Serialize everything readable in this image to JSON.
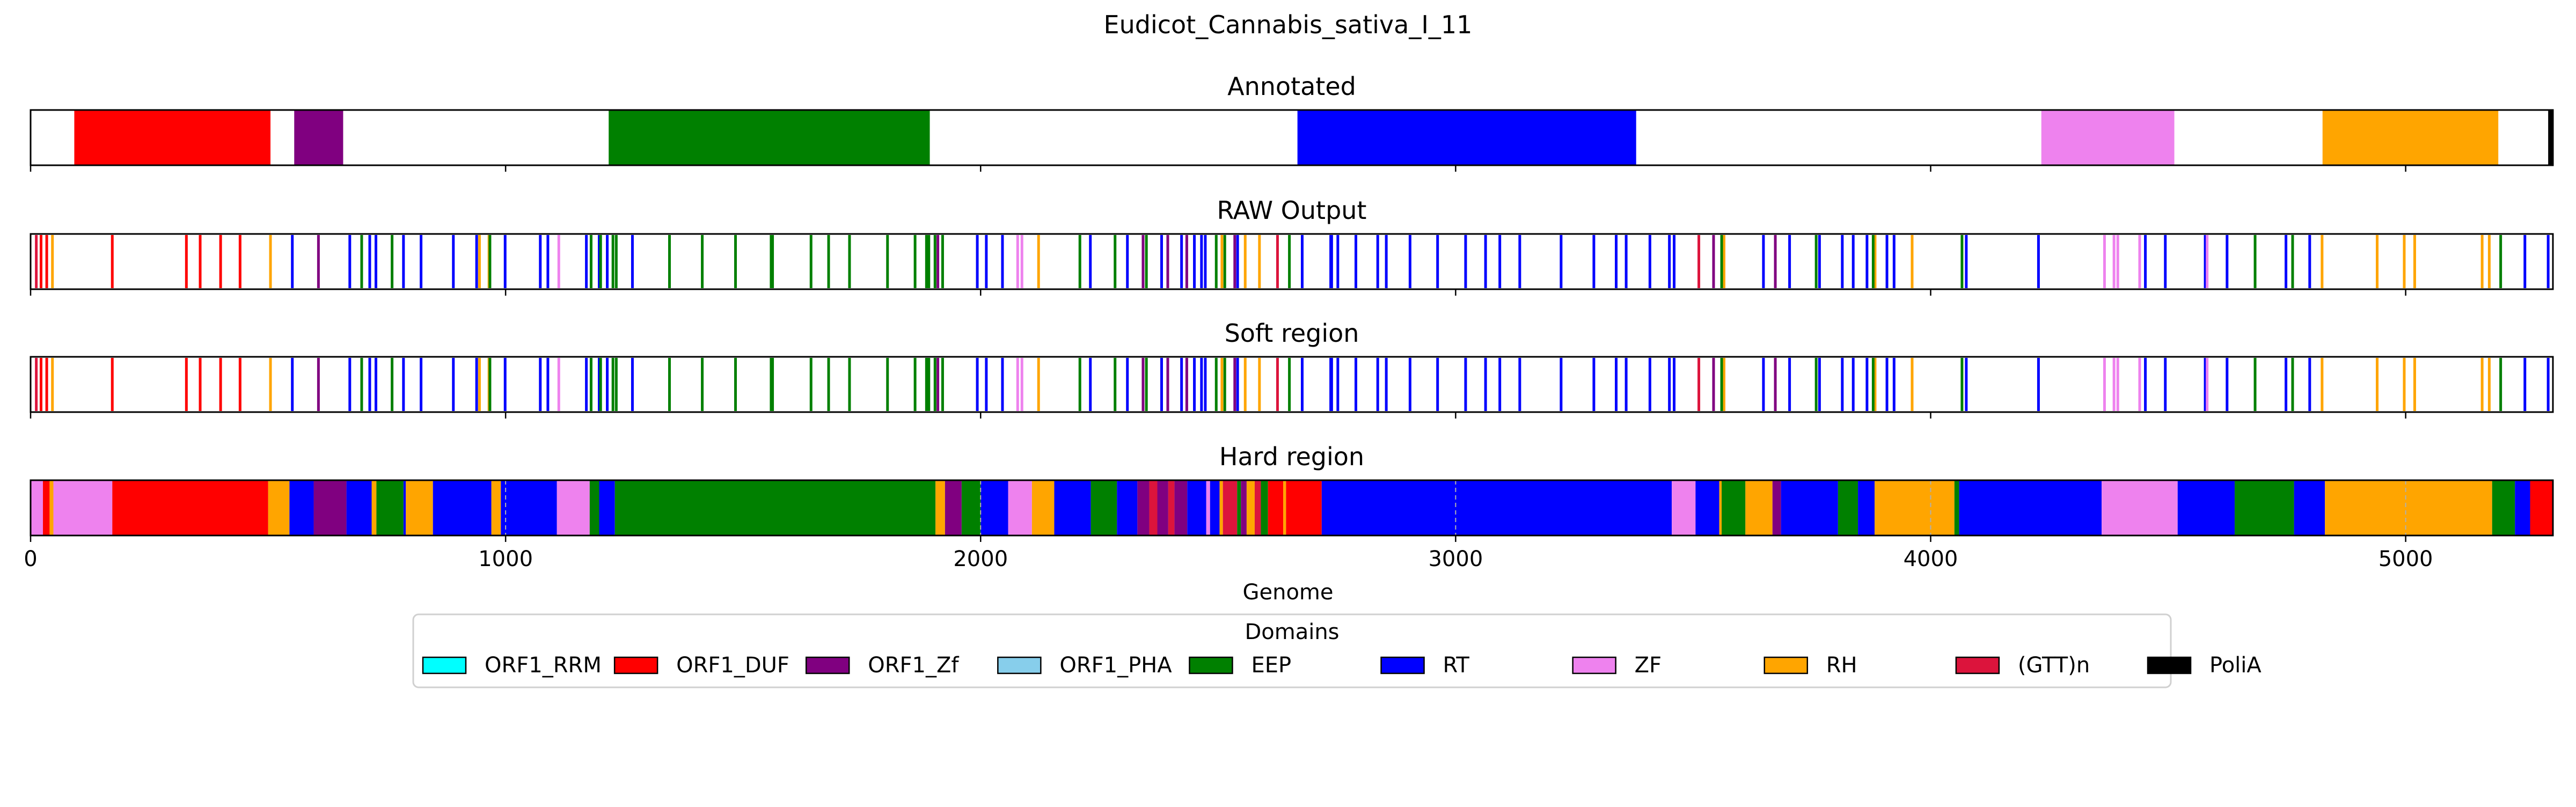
{
  "chart_data": {
    "type": "bar",
    "title": "Eudicot_Cannabis_sativa_I_11",
    "xlabel": "Genome",
    "ylabel": "",
    "xlim": [
      0,
      5310
    ],
    "xticks": [
      0,
      1000,
      2000,
      3000,
      4000,
      5000
    ],
    "xtick_labels": [
      "0",
      "1000",
      "2000",
      "3000",
      "4000",
      "5000"
    ],
    "legend": {
      "title": "Domains",
      "placement": "bottom-center",
      "entries": [
        {
          "name": "ORF1_RRM",
          "color": "#00FFFF"
        },
        {
          "name": "ORF1_DUF",
          "color": "#FF0000"
        },
        {
          "name": "ORF1_Zf",
          "color": "#800080"
        },
        {
          "name": "ORF1_PHA",
          "color": "#87CEEB"
        },
        {
          "name": "EEP",
          "color": "#008000"
        },
        {
          "name": "RT",
          "color": "#0000FF"
        },
        {
          "name": "ZF",
          "color": "#EE82EE"
        },
        {
          "name": "RH",
          "color": "#FFA500"
        },
        {
          "name": "(GTT)n",
          "color": "#DC143C"
        },
        {
          "name": "PoliA",
          "color": "#000000"
        }
      ]
    },
    "panels": [
      {
        "title": "Annotated",
        "style": "regions",
        "segments": [
          {
            "domain": "ORF1_DUF",
            "start": 92,
            "end": 505
          },
          {
            "domain": "ORF1_Zf",
            "start": 555,
            "end": 658
          },
          {
            "domain": "EEP",
            "start": 1217,
            "end": 1893
          },
          {
            "domain": "RT",
            "start": 2667,
            "end": 3380
          },
          {
            "domain": "ZF",
            "start": 4233,
            "end": 4513
          },
          {
            "domain": "RH",
            "start": 4825,
            "end": 5195
          },
          {
            "domain": "PoliA",
            "start": 5300,
            "end": 5310
          }
        ]
      },
      {
        "title": "RAW Output",
        "style": "lines",
        "hits": [
          {
            "domain": "ORF1_DUF",
            "positions": [
              22,
              34,
              172,
              328,
              357,
              400,
              441
            ]
          },
          {
            "domain": "RH",
            "positions": [
              46,
              505,
              945,
              965,
              2122,
              2508,
              2557,
              2587,
              3565,
              3883,
              3961,
              4824,
              4940,
              4997,
              5019,
              5161,
              5176
            ]
          },
          {
            "domain": "ORF1_Zf",
            "positions": [
              606,
              1910,
              2342,
              2394,
              2434,
              2535,
              3543,
              3673
            ]
          },
          {
            "domain": "RT",
            "positions": [
              551,
              672,
              714,
              727,
              785,
              822,
              890,
              939,
              999,
              1073,
              1089,
              1170,
              1197,
              1214,
              1267,
              1993,
              2012,
              2046,
              2231,
              2309,
              2381,
              2423,
              2450,
              2465,
              2473,
              2541,
              2677,
              2737,
              2739,
              2752,
              2790,
              2836,
              2854,
              2904,
              2962,
              3021,
              3063,
              3093,
              3135,
              3222,
              3291,
              3338,
              3359,
              3409,
              3450,
              3460,
              3648,
              3703,
              3766,
              3814,
              3837,
              3866,
              3908,
              3923,
              4075,
              4227,
              4452,
              4494,
              4578,
              4624,
              4748,
              4798,
              5251,
              5300
            ]
          },
          {
            "domain": "EEP",
            "positions": [
              697,
              761,
              967,
              1180,
              1200,
              1226,
              1233,
              1345,
              1414,
              1484,
              1559,
              1562,
              1643,
              1680,
              1724,
              1804,
              1862,
              1886,
              1891,
              1904,
              1920,
              2209,
              2283,
              2349,
              2496,
              2514,
              2650,
              3560,
              3759,
              3879,
              4066,
              4683,
              4762,
              5200
            ]
          },
          {
            "domain": "ZF",
            "positions": [
              1112,
              2078,
              2087,
              4366,
              4386,
              4394,
              4440,
              4582
            ]
          },
          {
            "domain": "(GTT)n",
            "positions": [
              12,
              2625,
              3512
            ]
          }
        ]
      },
      {
        "title": "Soft region",
        "style": "lines",
        "hits": [
          {
            "domain": "ORF1_DUF",
            "positions": [
              22,
              34,
              172,
              328,
              357,
              400,
              441
            ]
          },
          {
            "domain": "RH",
            "positions": [
              46,
              505,
              945,
              965,
              2122,
              2508,
              2557,
              2587,
              3565,
              3883,
              3961,
              4824,
              4940,
              4997,
              5019,
              5161,
              5176
            ]
          },
          {
            "domain": "ORF1_Zf",
            "positions": [
              606,
              1910,
              2342,
              2394,
              2434,
              2535,
              3543,
              3673
            ]
          },
          {
            "domain": "RT",
            "positions": [
              551,
              672,
              714,
              727,
              785,
              822,
              890,
              939,
              999,
              1073,
              1089,
              1170,
              1197,
              1214,
              1267,
              1993,
              2012,
              2046,
              2231,
              2309,
              2381,
              2423,
              2450,
              2465,
              2473,
              2541,
              2677,
              2737,
              2739,
              2752,
              2790,
              2836,
              2854,
              2904,
              2962,
              3021,
              3063,
              3093,
              3135,
              3222,
              3291,
              3338,
              3359,
              3409,
              3450,
              3460,
              3648,
              3703,
              3766,
              3814,
              3837,
              3866,
              3908,
              3923,
              4075,
              4227,
              4452,
              4494,
              4578,
              4624,
              4748,
              4798,
              5251,
              5300
            ]
          },
          {
            "domain": "EEP",
            "positions": [
              697,
              761,
              967,
              1180,
              1200,
              1226,
              1233,
              1345,
              1414,
              1484,
              1559,
              1562,
              1643,
              1680,
              1724,
              1804,
              1862,
              1886,
              1891,
              1904,
              1920,
              2209,
              2283,
              2349,
              2496,
              2514,
              2650,
              3560,
              3759,
              3879,
              4066,
              4683,
              4762,
              5200
            ]
          },
          {
            "domain": "ZF",
            "positions": [
              1112,
              2078,
              2087,
              4366,
              4386,
              4394,
              4440,
              4582
            ]
          },
          {
            "domain": "(GTT)n",
            "positions": [
              12,
              2625,
              3512
            ]
          }
        ]
      },
      {
        "title": "Hard region",
        "style": "regions",
        "segments": [
          {
            "domain": "ZF",
            "start": 0,
            "end": 26
          },
          {
            "domain": "ORF1_DUF",
            "start": 26,
            "end": 40
          },
          {
            "domain": "RH",
            "start": 40,
            "end": 48
          },
          {
            "domain": "ZF",
            "start": 48,
            "end": 172
          },
          {
            "domain": "ORF1_DUF",
            "start": 172,
            "end": 500
          },
          {
            "domain": "RH",
            "start": 500,
            "end": 545
          },
          {
            "domain": "RT",
            "start": 545,
            "end": 596
          },
          {
            "domain": "ORF1_Zf",
            "start": 596,
            "end": 665
          },
          {
            "domain": "RT",
            "start": 665,
            "end": 718
          },
          {
            "domain": "RH",
            "start": 718,
            "end": 728
          },
          {
            "domain": "EEP",
            "start": 728,
            "end": 785
          },
          {
            "domain": "RT",
            "start": 785,
            "end": 790
          },
          {
            "domain": "RH",
            "start": 790,
            "end": 847
          },
          {
            "domain": "RT",
            "start": 847,
            "end": 970
          },
          {
            "domain": "RH",
            "start": 970,
            "end": 990
          },
          {
            "domain": "RT",
            "start": 990,
            "end": 1108
          },
          {
            "domain": "ZF",
            "start": 1108,
            "end": 1177
          },
          {
            "domain": "EEP",
            "start": 1177,
            "end": 1197
          },
          {
            "domain": "RT",
            "start": 1197,
            "end": 1230
          },
          {
            "domain": "EEP",
            "start": 1230,
            "end": 1905
          },
          {
            "domain": "RH",
            "start": 1905,
            "end": 1925
          },
          {
            "domain": "ORF1_Zf",
            "start": 1925,
            "end": 1960
          },
          {
            "domain": "EEP",
            "start": 1960,
            "end": 2000
          },
          {
            "domain": "RT",
            "start": 2000,
            "end": 2058
          },
          {
            "domain": "ZF",
            "start": 2058,
            "end": 2108
          },
          {
            "domain": "RH",
            "start": 2108,
            "end": 2155
          },
          {
            "domain": "RT",
            "start": 2155,
            "end": 2232
          },
          {
            "domain": "EEP",
            "start": 2232,
            "end": 2287
          },
          {
            "domain": "RT",
            "start": 2287,
            "end": 2330
          },
          {
            "domain": "ORF1_Zf",
            "start": 2330,
            "end": 2355
          },
          {
            "domain": "(GTT)n",
            "start": 2355,
            "end": 2372
          },
          {
            "domain": "ORF1_Zf",
            "start": 2372,
            "end": 2395
          },
          {
            "domain": "(GTT)n",
            "start": 2395,
            "end": 2408
          },
          {
            "domain": "ORF1_Zf",
            "start": 2408,
            "end": 2435
          },
          {
            "domain": "RT",
            "start": 2435,
            "end": 2475
          },
          {
            "domain": "ZF",
            "start": 2475,
            "end": 2483
          },
          {
            "domain": "RT",
            "start": 2483,
            "end": 2503
          },
          {
            "domain": "RH",
            "start": 2503,
            "end": 2510
          },
          {
            "domain": "(GTT)n",
            "start": 2510,
            "end": 2540
          },
          {
            "domain": "EEP",
            "start": 2540,
            "end": 2548
          },
          {
            "domain": "ORF1_Zf",
            "start": 2548,
            "end": 2560
          },
          {
            "domain": "RH",
            "start": 2560,
            "end": 2577
          },
          {
            "domain": "(GTT)n",
            "start": 2577,
            "end": 2590
          },
          {
            "domain": "EEP",
            "start": 2590,
            "end": 2605
          },
          {
            "domain": "ORF1_DUF",
            "start": 2605,
            "end": 2637
          },
          {
            "domain": "RH",
            "start": 2637,
            "end": 2643
          },
          {
            "domain": "ORF1_DUF",
            "start": 2643,
            "end": 2718
          },
          {
            "domain": "RT",
            "start": 2718,
            "end": 3455
          },
          {
            "domain": "ZF",
            "start": 3455,
            "end": 3505
          },
          {
            "domain": "RT",
            "start": 3505,
            "end": 3555
          },
          {
            "domain": "RH",
            "start": 3555,
            "end": 3560
          },
          {
            "domain": "EEP",
            "start": 3560,
            "end": 3610
          },
          {
            "domain": "RH",
            "start": 3610,
            "end": 3667
          },
          {
            "domain": "ORF1_Zf",
            "start": 3667,
            "end": 3685
          },
          {
            "domain": "RT",
            "start": 3685,
            "end": 3805
          },
          {
            "domain": "EEP",
            "start": 3805,
            "end": 3847
          },
          {
            "domain": "RT",
            "start": 3847,
            "end": 3882
          },
          {
            "domain": "RH",
            "start": 3882,
            "end": 4050
          },
          {
            "domain": "EEP",
            "start": 4050,
            "end": 4060
          },
          {
            "domain": "RT",
            "start": 4060,
            "end": 4360
          },
          {
            "domain": "ZF",
            "start": 4360,
            "end": 4520
          },
          {
            "domain": "RT",
            "start": 4520,
            "end": 4640
          },
          {
            "domain": "EEP",
            "start": 4640,
            "end": 4765
          },
          {
            "domain": "RT",
            "start": 4765,
            "end": 4830
          },
          {
            "domain": "RH",
            "start": 4830,
            "end": 5182
          },
          {
            "domain": "EEP",
            "start": 5182,
            "end": 5230
          },
          {
            "domain": "RT",
            "start": 5230,
            "end": 5262
          },
          {
            "domain": "ORF1_DUF",
            "start": 5262,
            "end": 5310
          }
        ]
      }
    ]
  }
}
